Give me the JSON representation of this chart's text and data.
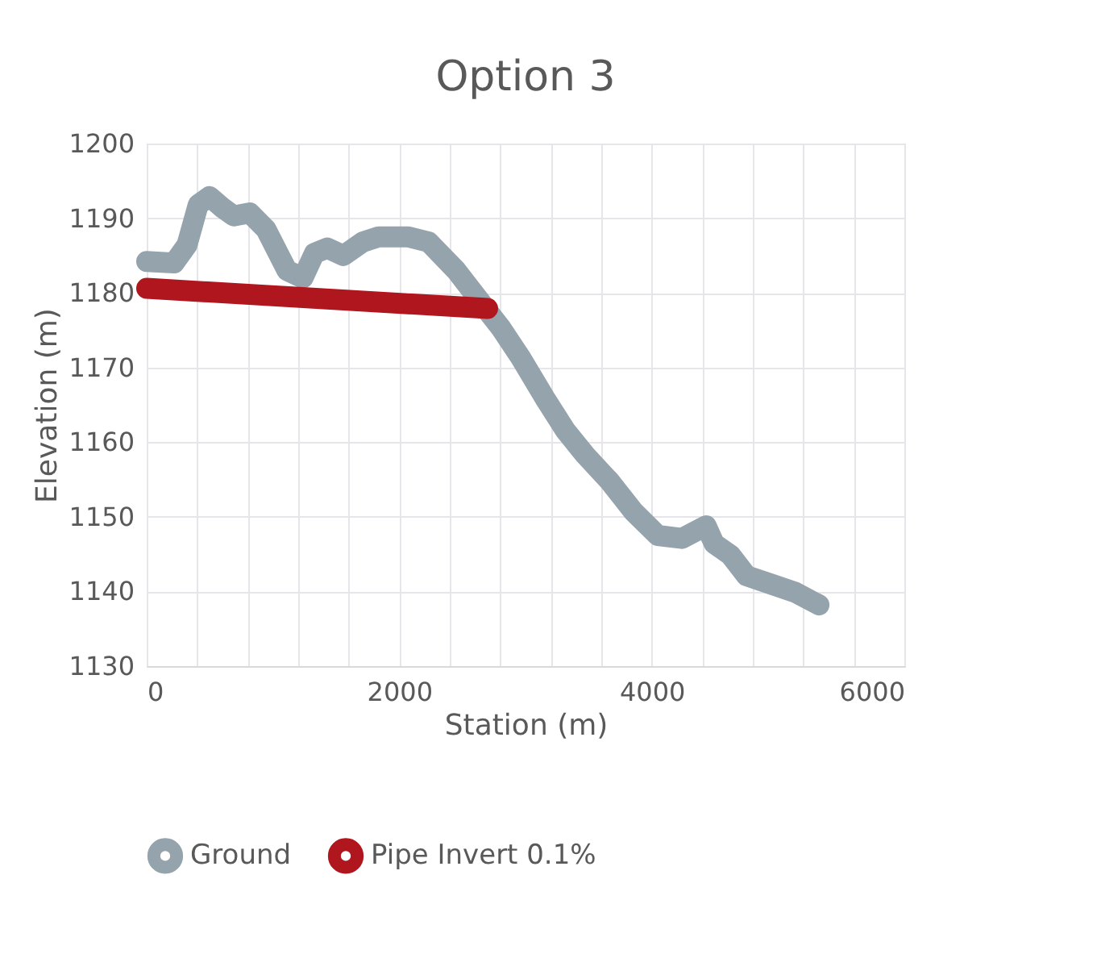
{
  "chart_data": {
    "type": "line",
    "title": "Option 3",
    "xlabel": "Station (m)",
    "ylabel": "Elevation (m)",
    "xlim": [
      0,
      6000
    ],
    "ylim": [
      1130,
      1200
    ],
    "xticks": [
      0,
      {
        "value": 400,
        "label": null
      },
      {
        "value": 800,
        "label": null
      },
      {
        "value": 1200,
        "label": null
      },
      {
        "value": 1600,
        "label": null
      },
      2000,
      {
        "value": 2400,
        "label": null
      },
      {
        "value": 2800,
        "label": null
      },
      {
        "value": 3200,
        "label": null
      },
      {
        "value": 3600,
        "label": null
      },
      4000,
      {
        "value": 4400,
        "label": null
      },
      {
        "value": 4800,
        "label": null
      },
      {
        "value": 5200,
        "label": null
      },
      {
        "value": 5600,
        "label": null
      },
      6000
    ],
    "yticks": [
      1130,
      1140,
      1150,
      1160,
      1170,
      1180,
      1190,
      1200
    ],
    "grid": true,
    "legend": "bottom",
    "line_style": "solid",
    "series": [
      {
        "name": "Ground",
        "color": "#94a3ac",
        "x": [
          0,
          217,
          319,
          408,
          498,
          600,
          690,
          817,
          945,
          1111,
          1238,
          1328,
          1430,
          1558,
          1711,
          1838,
          2068,
          2234,
          2451,
          2643,
          2809,
          2962,
          3153,
          3319,
          3472,
          3664,
          3855,
          4047,
          4238,
          4430,
          4494,
          4622,
          4750,
          4941,
          5133,
          5324
        ],
        "values": [
          1184.2,
          1184,
          1186.4,
          1191.8,
          1192.9,
          1191.4,
          1190.3,
          1190.7,
          1188.5,
          1183,
          1182,
          1185.3,
          1186,
          1185,
          1186.8,
          1187.5,
          1187.5,
          1186.8,
          1183,
          1178.8,
          1175.2,
          1171.3,
          1165.9,
          1161.5,
          1158.3,
          1154.8,
          1150.7,
          1147.5,
          1147.1,
          1148.8,
          1146.4,
          1144.9,
          1142.1,
          1141,
          1139.9,
          1138.2
        ]
      },
      {
        "name": "Pipe Invert 0.1%",
        "color": "#b0161e",
        "x": [
          0,
          2700
        ],
        "values": [
          1180.6,
          1177.9
        ]
      }
    ]
  }
}
